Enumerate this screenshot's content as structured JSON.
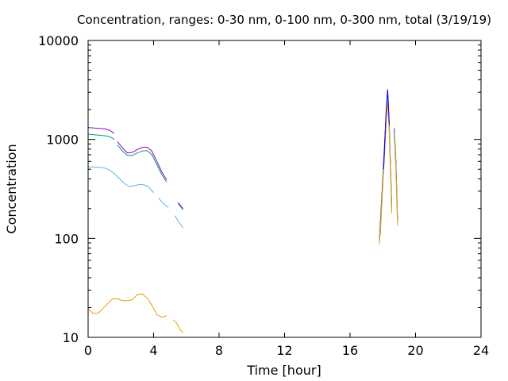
{
  "chart_data": {
    "type": "line",
    "title": "Concentration, ranges: 0-30 nm, 0-100 nm, 0-300 nm, total (3/19/19)",
    "xlabel": "Time [hour]",
    "ylabel": "Concentration",
    "xlim": [
      0,
      24
    ],
    "ylim": [
      10,
      10000
    ],
    "y_scale": "log",
    "grid": false,
    "legend": "none",
    "x_ticks": [
      "0",
      "4",
      "8",
      "12",
      "16",
      "20",
      "24"
    ],
    "y_ticks": [
      "10",
      "100",
      "1000",
      "10000"
    ],
    "series": [
      {
        "color": "#9400d3",
        "segments": [
          [
            [
              0,
              1320
            ],
            [
              0.5,
              1300
            ],
            [
              1,
              1280
            ],
            [
              1.3,
              1240
            ],
            [
              1.6,
              1150
            ]
          ],
          [
            [
              1.8,
              950
            ],
            [
              2.1,
              820
            ],
            [
              2.4,
              730
            ],
            [
              2.7,
              740
            ],
            [
              3.0,
              790
            ],
            [
              3.3,
              830
            ],
            [
              3.6,
              835
            ],
            [
              3.9,
              760
            ],
            [
              4.2,
              600
            ],
            [
              4.5,
              470
            ],
            [
              4.8,
              390
            ]
          ],
          [
            [
              5.5,
              230
            ],
            [
              5.8,
              200
            ]
          ],
          [
            [
              17.8,
              100
            ],
            [
              18.0,
              420
            ],
            [
              18.2,
              1800
            ],
            [
              18.3,
              3100
            ],
            [
              18.4,
              1300
            ],
            [
              18.55,
              210
            ]
          ],
          [
            [
              18.7,
              1300
            ],
            [
              18.8,
              600
            ],
            [
              18.9,
              160
            ]
          ]
        ]
      },
      {
        "color": "#009e73",
        "segments": [
          [
            [
              0,
              1130
            ],
            [
              0.5,
              1110
            ],
            [
              1,
              1090
            ],
            [
              1.3,
              1070
            ],
            [
              1.6,
              1000
            ]
          ],
          [
            [
              1.8,
              880
            ],
            [
              2.1,
              760
            ],
            [
              2.4,
              690
            ],
            [
              2.7,
              690
            ],
            [
              3.0,
              730
            ],
            [
              3.3,
              765
            ],
            [
              3.6,
              770
            ],
            [
              3.9,
              700
            ],
            [
              4.2,
              560
            ],
            [
              4.5,
              440
            ],
            [
              4.8,
              370
            ]
          ],
          [
            [
              5.5,
              225
            ],
            [
              5.8,
              195
            ]
          ],
          [
            [
              17.8,
              95
            ],
            [
              18.0,
              400
            ],
            [
              18.2,
              1700
            ],
            [
              18.3,
              2900
            ],
            [
              18.4,
              1250
            ],
            [
              18.55,
              200
            ]
          ],
          [
            [
              18.7,
              1250
            ],
            [
              18.8,
              580
            ],
            [
              18.9,
              155
            ]
          ]
        ]
      },
      {
        "color": "#56b4e9",
        "segments": [
          [
            [
              0,
              530
            ],
            [
              0.5,
              525
            ],
            [
              1,
              515
            ],
            [
              1.3,
              490
            ],
            [
              1.6,
              450
            ],
            [
              1.9,
              405
            ],
            [
              2.2,
              360
            ],
            [
              2.5,
              335
            ],
            [
              2.8,
              340
            ],
            [
              3.1,
              350
            ],
            [
              3.4,
              348
            ],
            [
              3.7,
              330
            ],
            [
              4.0,
              290
            ]
          ],
          [
            [
              4.3,
              255
            ],
            [
              4.6,
              225
            ],
            [
              4.9,
              205
            ]
          ],
          [
            [
              5.3,
              170
            ],
            [
              5.5,
              150
            ],
            [
              5.8,
              128
            ]
          ],
          [
            [
              17.85,
              110
            ],
            [
              18.0,
              360
            ],
            [
              18.2,
              1500
            ],
            [
              18.3,
              2600
            ],
            [
              18.4,
              1150
            ],
            [
              18.55,
              190
            ]
          ],
          [
            [
              18.7,
              1150
            ],
            [
              18.8,
              540
            ],
            [
              18.9,
              150
            ]
          ]
        ]
      },
      {
        "color": "#e69f00",
        "segments": [
          [
            [
              0,
              19.5
            ],
            [
              0.3,
              17.5
            ],
            [
              0.6,
              17.5
            ],
            [
              0.9,
              19.5
            ],
            [
              1.2,
              22
            ],
            [
              1.5,
              24.5
            ],
            [
              1.8,
              24.5
            ],
            [
              2.1,
              23.5
            ],
            [
              2.4,
              23.5
            ],
            [
              2.7,
              24
            ],
            [
              3.0,
              27
            ],
            [
              3.3,
              27.5
            ],
            [
              3.6,
              25
            ],
            [
              3.9,
              21
            ],
            [
              4.2,
              17
            ],
            [
              4.5,
              16
            ],
            [
              4.8,
              16.5
            ]
          ],
          [
            [
              5.2,
              15
            ],
            [
              5.4,
              14
            ],
            [
              5.6,
              12
            ],
            [
              5.8,
              11.2
            ]
          ],
          [
            [
              17.8,
              88
            ],
            [
              18.0,
              340
            ],
            [
              18.2,
              1400
            ],
            [
              18.3,
              2500
            ],
            [
              18.4,
              1100
            ],
            [
              18.55,
              180
            ]
          ],
          [
            [
              18.7,
              1100
            ],
            [
              18.8,
              500
            ],
            [
              18.9,
              135
            ]
          ]
        ]
      },
      {
        "color": "#0000ff",
        "segments": [
          [
            [
              18.05,
              500
            ],
            [
              18.2,
              1900
            ],
            [
              18.3,
              3200
            ],
            [
              18.4,
              1400
            ]
          ]
        ]
      }
    ]
  }
}
